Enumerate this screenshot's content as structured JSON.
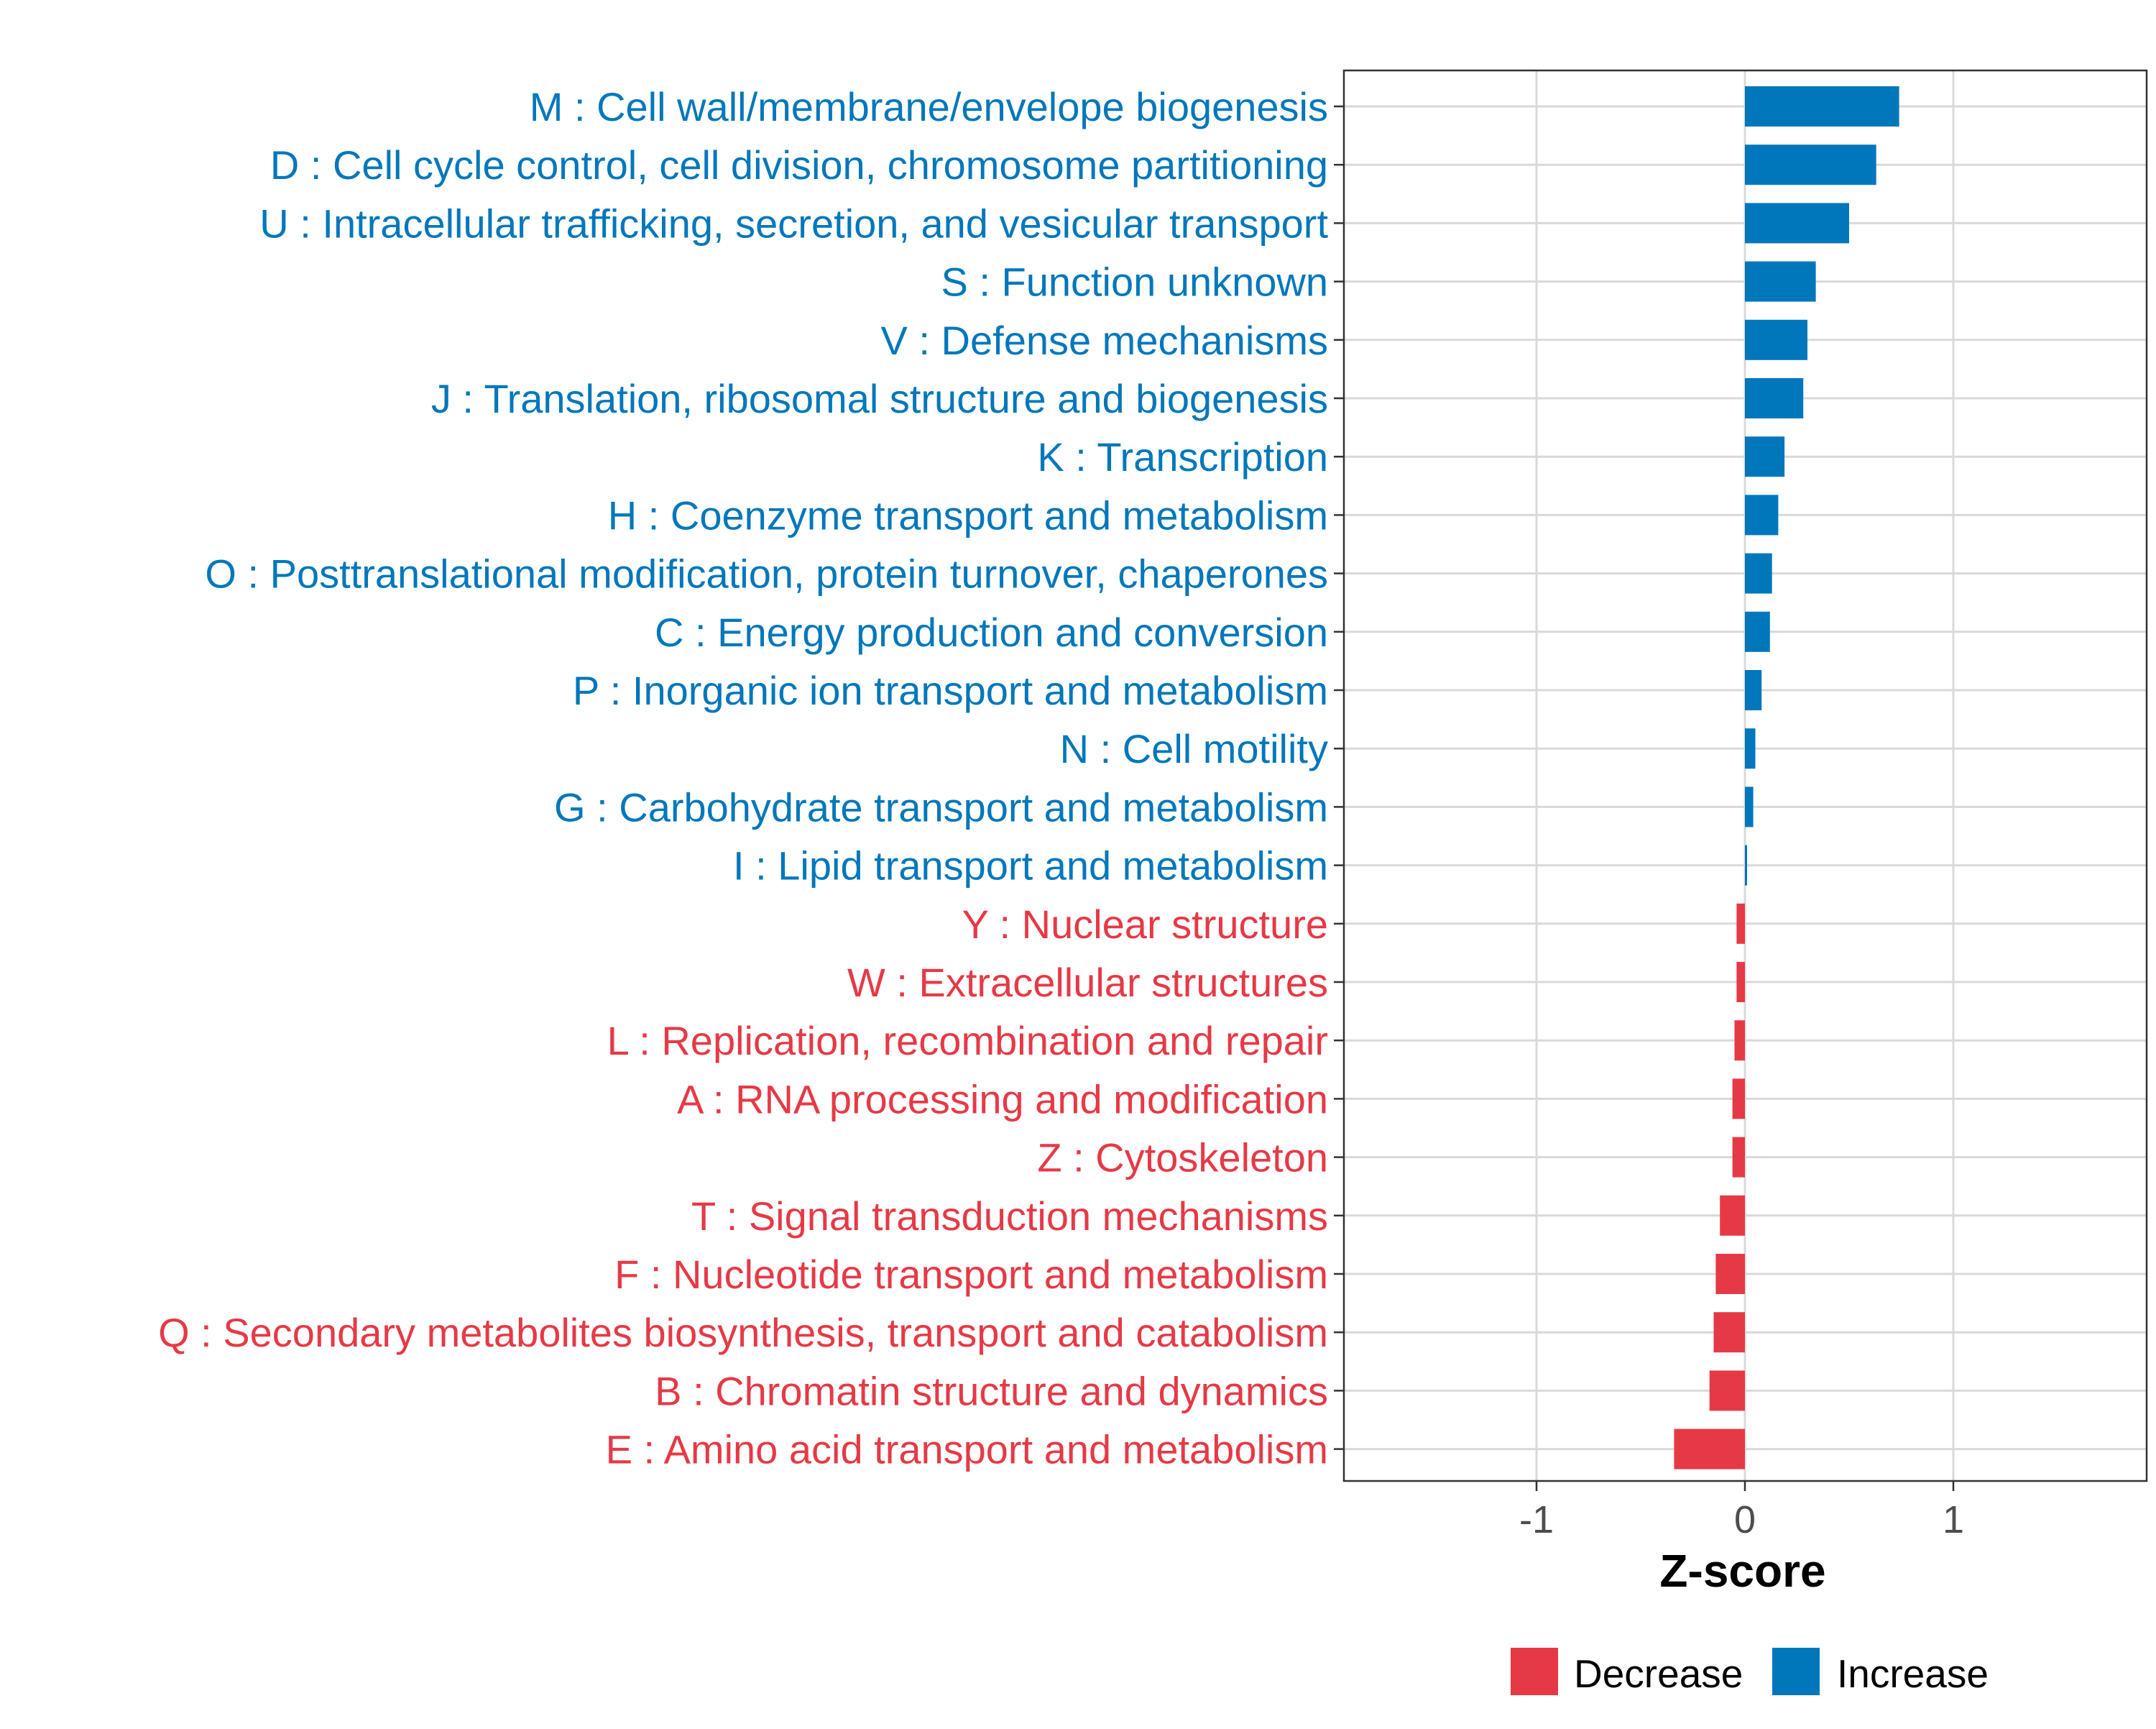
{
  "chart_data": {
    "type": "bar",
    "orientation": "horizontal",
    "title": "",
    "xlabel": "Z-score",
    "ylabel": "",
    "xlim": [
      -1.92,
      1.92
    ],
    "x_ticks": [
      -1,
      0,
      1
    ],
    "x_tick_labels": [
      "-1",
      "0",
      "1"
    ],
    "grid": true,
    "legend_position": "bottom",
    "colors": {
      "Decrease": "#E63946",
      "Increase": "#0077BB"
    },
    "legend": [
      {
        "name": "Decrease",
        "color": "#E63946"
      },
      {
        "name": "Increase",
        "color": "#0077BB"
      }
    ],
    "categories": [
      {
        "label": "M : Cell wall/membrane/envelope biogenesis",
        "value": 0.74,
        "direction": "Increase"
      },
      {
        "label": "D : Cell cycle control, cell division, chromosome partitioning",
        "value": 0.63,
        "direction": "Increase"
      },
      {
        "label": "U : Intracellular trafficking, secretion, and vesicular transport",
        "value": 0.5,
        "direction": "Increase"
      },
      {
        "label": "S : Function unknown",
        "value": 0.34,
        "direction": "Increase"
      },
      {
        "label": "V : Defense mechanisms",
        "value": 0.3,
        "direction": "Increase"
      },
      {
        "label": "J : Translation, ribosomal structure and biogenesis",
        "value": 0.28,
        "direction": "Increase"
      },
      {
        "label": "K : Transcription",
        "value": 0.19,
        "direction": "Increase"
      },
      {
        "label": "H : Coenzyme transport and metabolism",
        "value": 0.16,
        "direction": "Increase"
      },
      {
        "label": "O : Posttranslational modification, protein turnover, chaperones",
        "value": 0.13,
        "direction": "Increase"
      },
      {
        "label": "C : Energy production and conversion",
        "value": 0.12,
        "direction": "Increase"
      },
      {
        "label": "P : Inorganic ion transport and metabolism",
        "value": 0.08,
        "direction": "Increase"
      },
      {
        "label": "N : Cell motility",
        "value": 0.05,
        "direction": "Increase"
      },
      {
        "label": "G : Carbohydrate transport and metabolism",
        "value": 0.04,
        "direction": "Increase"
      },
      {
        "label": "I : Lipid transport and metabolism",
        "value": 0.01,
        "direction": "Increase"
      },
      {
        "label": "Y : Nuclear structure",
        "value": -0.04,
        "direction": "Decrease"
      },
      {
        "label": "W : Extracellular structures",
        "value": -0.04,
        "direction": "Decrease"
      },
      {
        "label": "L : Replication, recombination and repair",
        "value": -0.05,
        "direction": "Decrease"
      },
      {
        "label": "A : RNA processing and modification",
        "value": -0.06,
        "direction": "Decrease"
      },
      {
        "label": "Z : Cytoskeleton",
        "value": -0.06,
        "direction": "Decrease"
      },
      {
        "label": "T : Signal transduction mechanisms",
        "value": -0.12,
        "direction": "Decrease"
      },
      {
        "label": "F : Nucleotide transport and metabolism",
        "value": -0.14,
        "direction": "Decrease"
      },
      {
        "label": "Q : Secondary metabolites biosynthesis, transport and catabolism",
        "value": -0.15,
        "direction": "Decrease"
      },
      {
        "label": "B : Chromatin structure and dynamics",
        "value": -0.17,
        "direction": "Decrease"
      },
      {
        "label": "E : Amino acid transport and metabolism",
        "value": -0.34,
        "direction": "Decrease"
      }
    ]
  }
}
